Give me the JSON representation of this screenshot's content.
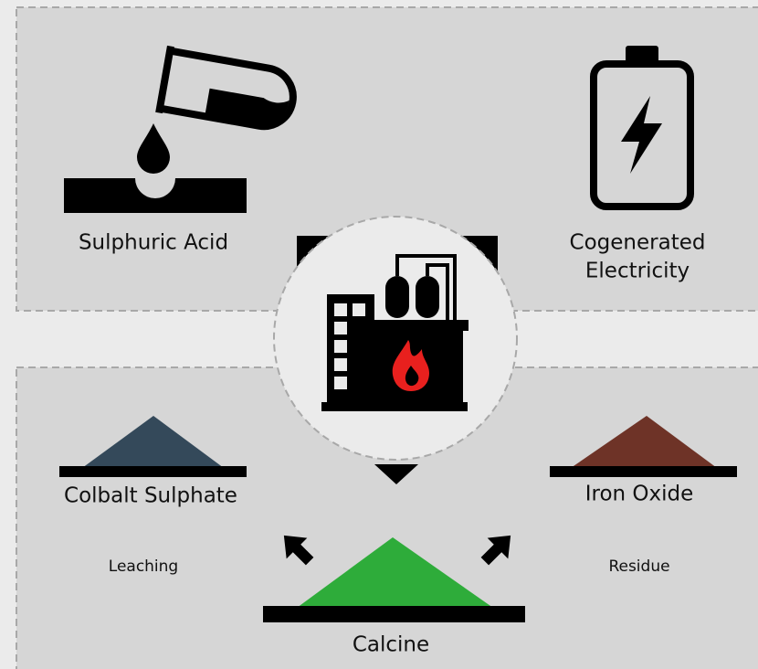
{
  "labels": {
    "sulphuric_acid": "Sulphuric Acid",
    "cogenerated_electricity": [
      "Cogenerated",
      "Electricity"
    ],
    "cobalt_sulphate": "Colbalt Sulphate",
    "iron_oxide": "Iron Oxide",
    "leaching": "Leaching",
    "residue": "Residue",
    "calcine": "Calcine"
  }
}
